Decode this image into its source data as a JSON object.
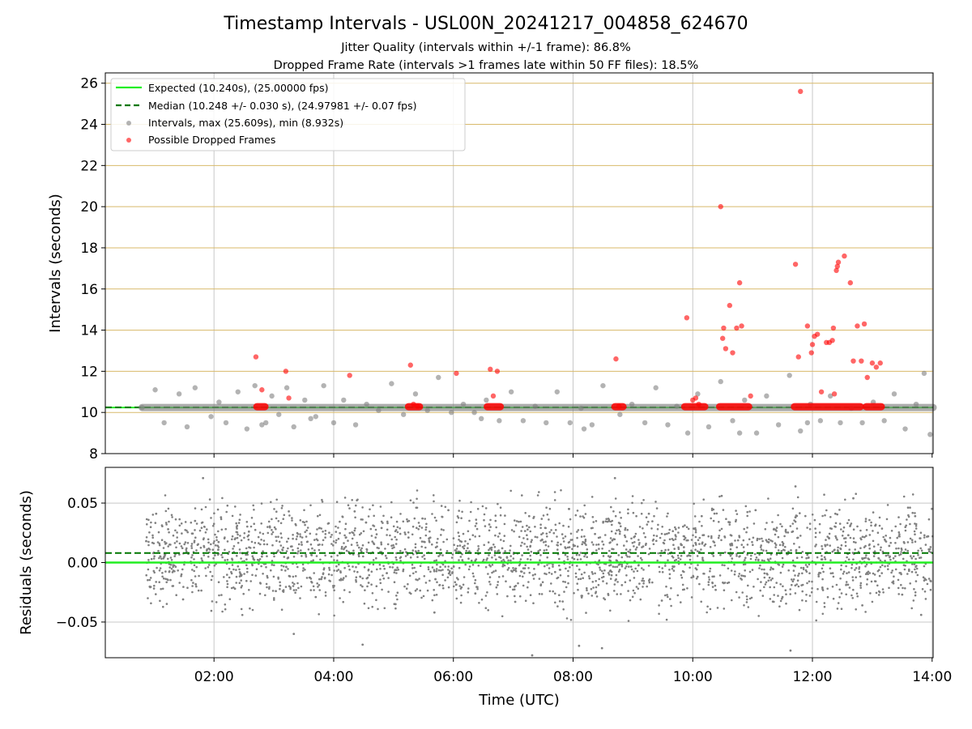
{
  "figure": {
    "title": "Timestamp Intervals - USL00N_20241217_004858_624670",
    "subtitle_1": "Jitter Quality (intervals within +/-1 frame): 86.8%",
    "subtitle_2": "Dropped Frame Rate (intervals >1 frames late within 50 FF files): 18.5%"
  },
  "colors": {
    "expected": "#22ee22",
    "median": "#007700",
    "intervals": "#808080",
    "dropped": "#ff0000",
    "hgrid_top": "#d8b96a",
    "vgrid": "#c8c8c8"
  },
  "chart_data": [
    {
      "type": "scatter",
      "panel": "intervals",
      "xlabel": "",
      "ylabel": "Intervals (seconds)",
      "xlim": [
        "00:11",
        "14:01"
      ],
      "ylim": [
        8,
        26.5
      ],
      "yticks": [
        8,
        10,
        12,
        14,
        16,
        18,
        20,
        22,
        24,
        26
      ],
      "xticks": [
        "02:00",
        "04:00",
        "06:00",
        "08:00",
        "10:00",
        "12:00",
        "14:00"
      ],
      "grid": true,
      "legend": {
        "placement": "top-left",
        "entries": [
          {
            "label": "Expected (10.240s), (25.00000 fps)",
            "style": "solid-line",
            "color": "#22ee22"
          },
          {
            "label": "Median (10.248 +/- 0.030 s), (24.97981 +/- 0.07 fps)",
            "style": "dashed-line",
            "color": "#007700"
          },
          {
            "label": "Intervals, max (25.609s), min (8.932s)",
            "style": "marker",
            "color": "#808080"
          },
          {
            "label": "Possible Dropped Frames",
            "style": "marker",
            "color": "#ff0000"
          }
        ]
      },
      "reference_lines": {
        "expected": 10.24,
        "median": 10.248
      },
      "series": [
        {
          "name": "Intervals, max (25.609s), min (8.932s)",
          "x": [
            "00:48",
            "01:01",
            "01:10",
            "01:25",
            "01:33",
            "01:41",
            "01:57",
            "02:05",
            "02:12",
            "02:24",
            "02:33",
            "02:41",
            "02:48",
            "02:58",
            "03:05",
            "03:13",
            "03:20",
            "03:31",
            "03:42",
            "03:50",
            "04:00",
            "04:10",
            "04:22",
            "04:33",
            "04:45",
            "04:58",
            "05:10",
            "05:22",
            "05:34",
            "05:45",
            "05:58",
            "06:10",
            "06:21",
            "06:33",
            "06:46",
            "06:58",
            "07:10",
            "07:22",
            "07:33",
            "07:44",
            "07:57",
            "08:08",
            "08:19",
            "08:30",
            "08:47",
            "08:59",
            "09:12",
            "09:23",
            "09:35",
            "09:44",
            "09:55",
            "10:05",
            "10:16",
            "10:28",
            "10:40",
            "10:52",
            "11:04",
            "11:14",
            "11:26",
            "11:37",
            "11:48",
            "11:58",
            "12:08",
            "12:18",
            "12:28",
            "12:39",
            "12:50",
            "13:01",
            "13:12",
            "13:22",
            "13:33",
            "13:44",
            "13:52",
            "13:58",
            "02:52",
            "03:37",
            "06:28",
            "08:11",
            "10:47",
            "11:55"
          ],
          "y": [
            10.24,
            11.1,
            9.5,
            10.9,
            9.3,
            11.2,
            9.8,
            10.5,
            9.5,
            11.0,
            9.2,
            11.3,
            9.4,
            10.8,
            9.9,
            11.2,
            9.3,
            10.6,
            9.8,
            11.3,
            9.5,
            10.6,
            9.4,
            10.4,
            10.1,
            11.4,
            9.9,
            10.9,
            10.1,
            11.7,
            10.0,
            10.4,
            10.0,
            10.6,
            9.6,
            11.0,
            9.6,
            10.3,
            9.5,
            11.0,
            9.5,
            10.2,
            9.4,
            11.3,
            9.9,
            10.4,
            9.5,
            11.2,
            9.4,
            10.3,
            9.0,
            10.9,
            9.3,
            11.5,
            9.6,
            10.6,
            9.0,
            10.8,
            9.4,
            11.8,
            9.1,
            10.4,
            9.6,
            10.8,
            9.5,
            10.2,
            9.5,
            10.5,
            9.6,
            10.9,
            9.2,
            10.4,
            11.9,
            8.93,
            9.5,
            9.7,
            9.7,
            9.2,
            9.0,
            9.5
          ]
        },
        {
          "name": "Possible Dropped Frames",
          "x": [
            "02:42",
            "02:48",
            "03:12",
            "03:15",
            "04:16",
            "05:17",
            "05:20",
            "05:24",
            "06:03",
            "06:37",
            "06:40",
            "06:44",
            "08:43",
            "08:46",
            "09:54",
            "10:00",
            "10:03",
            "10:06",
            "10:28",
            "10:30",
            "10:31",
            "10:33",
            "10:37",
            "10:40",
            "10:44",
            "10:47",
            "10:49",
            "10:58",
            "11:43",
            "11:46",
            "11:48",
            "11:55",
            "11:59",
            "12:00",
            "12:02",
            "12:05",
            "12:09",
            "12:14",
            "12:17",
            "12:20",
            "12:21",
            "12:22",
            "12:24",
            "12:25",
            "12:26",
            "12:32",
            "12:38",
            "12:41",
            "12:45",
            "12:49",
            "12:52",
            "12:55",
            "13:00",
            "13:04",
            "13:08"
          ],
          "y": [
            12.7,
            11.1,
            12.0,
            10.7,
            11.8,
            12.3,
            10.4,
            10.3,
            11.9,
            12.1,
            10.8,
            12.0,
            12.6,
            10.3,
            14.6,
            10.6,
            10.7,
            10.4,
            20.0,
            13.6,
            14.1,
            13.1,
            15.2,
            12.9,
            14.1,
            16.3,
            14.2,
            10.8,
            17.2,
            12.7,
            25.6,
            14.2,
            12.9,
            13.3,
            13.7,
            13.8,
            11.0,
            13.4,
            13.4,
            13.5,
            14.1,
            10.9,
            16.9,
            17.1,
            17.3,
            17.6,
            16.3,
            12.5,
            14.2,
            12.5,
            14.3,
            11.7,
            12.4,
            12.2,
            12.4
          ]
        }
      ]
    },
    {
      "type": "scatter",
      "panel": "residuals",
      "xlabel": "Time (UTC)",
      "ylabel": "Residuals (seconds)",
      "xlim": [
        "00:11",
        "14:01"
      ],
      "ylim": [
        -0.08,
        0.08
      ],
      "yticks": [
        "0.05",
        "0.00",
        "−0.05"
      ],
      "xticks": [
        "02:00",
        "04:00",
        "06:00",
        "08:00",
        "10:00",
        "12:00",
        "14:00"
      ],
      "grid": true,
      "reference_lines": {
        "expected": 0.0,
        "median": 0.008
      },
      "series": [
        {
          "name": "Residuals",
          "x": [
            "00:52",
            "01:02",
            "01:14",
            "01:29",
            "01:41",
            "01:53",
            "02:07",
            "02:21",
            "02:35",
            "02:48",
            "03:02",
            "03:15",
            "03:28",
            "03:42",
            "03:55",
            "04:08",
            "04:21",
            "04:35",
            "04:48",
            "05:02",
            "05:15",
            "05:29",
            "05:42",
            "05:55",
            "06:09",
            "06:22",
            "06:36",
            "06:49",
            "07:02",
            "07:16",
            "07:29",
            "07:42",
            "07:56",
            "08:09",
            "08:22",
            "08:36",
            "08:49",
            "09:03",
            "09:16",
            "09:29",
            "09:43",
            "09:56",
            "10:09",
            "10:23",
            "10:36",
            "10:49",
            "11:03",
            "11:16",
            "11:30",
            "11:43",
            "11:56",
            "12:10",
            "12:23",
            "12:36",
            "12:50",
            "13:03",
            "13:17",
            "13:30",
            "13:43",
            "13:56",
            "01:49",
            "03:20",
            "04:29",
            "05:41",
            "07:19",
            "08:06",
            "08:29",
            "08:42",
            "10:29",
            "11:38",
            "11:43",
            "12:41",
            "13:49"
          ],
          "y": [
            0.018,
            0.041,
            0.028,
            -0.031,
            0.035,
            0.011,
            0.038,
            -0.022,
            0.026,
            0.005,
            -0.024,
            0.043,
            0.015,
            -0.029,
            0.033,
            0.008,
            0.043,
            -0.017,
            0.029,
            -0.035,
            0.021,
            0.037,
            -0.014,
            0.044,
            0.002,
            -0.026,
            0.032,
            0.012,
            -0.033,
            0.039,
            0.019,
            -0.008,
            0.045,
            -0.028,
            0.024,
            0.036,
            -0.019,
            0.011,
            0.041,
            -0.032,
            0.028,
            0.006,
            0.039,
            -0.023,
            0.034,
            -0.011,
            0.044,
            0.017,
            -0.029,
            0.038,
            0.004,
            -0.021,
            0.041,
            0.023,
            -0.036,
            0.031,
            0.014,
            -0.027,
            0.039,
            0.022,
            0.071,
            -0.06,
            -0.069,
            -0.042,
            -0.078,
            -0.07,
            -0.072,
            0.071,
            0.056,
            -0.074,
            0.064,
            0.054,
            -0.044
          ]
        }
      ]
    }
  ]
}
